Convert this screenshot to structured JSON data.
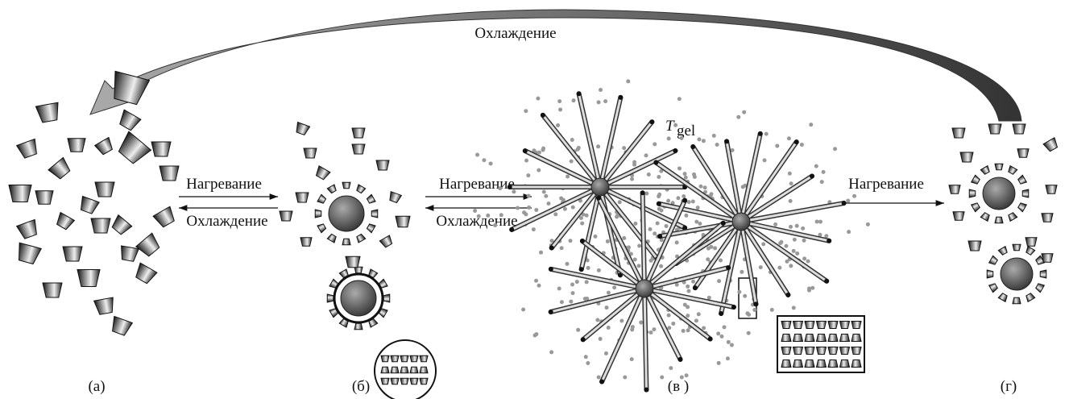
{
  "cooling_arrow_label": "Охлаждение",
  "transitions": [
    {
      "forward": "Нагревание",
      "backward": "Охлаждение"
    },
    {
      "forward": "Нагревание",
      "backward": "Охлаждение"
    },
    {
      "forward": "Нагревание"
    }
  ],
  "gel_temperature": {
    "symbol": "T",
    "subscript": "gel"
  },
  "panels": [
    {
      "label": "(а)"
    },
    {
      "label": "(б)"
    },
    {
      "label": "(в )"
    },
    {
      "label": "(г)"
    }
  ]
}
